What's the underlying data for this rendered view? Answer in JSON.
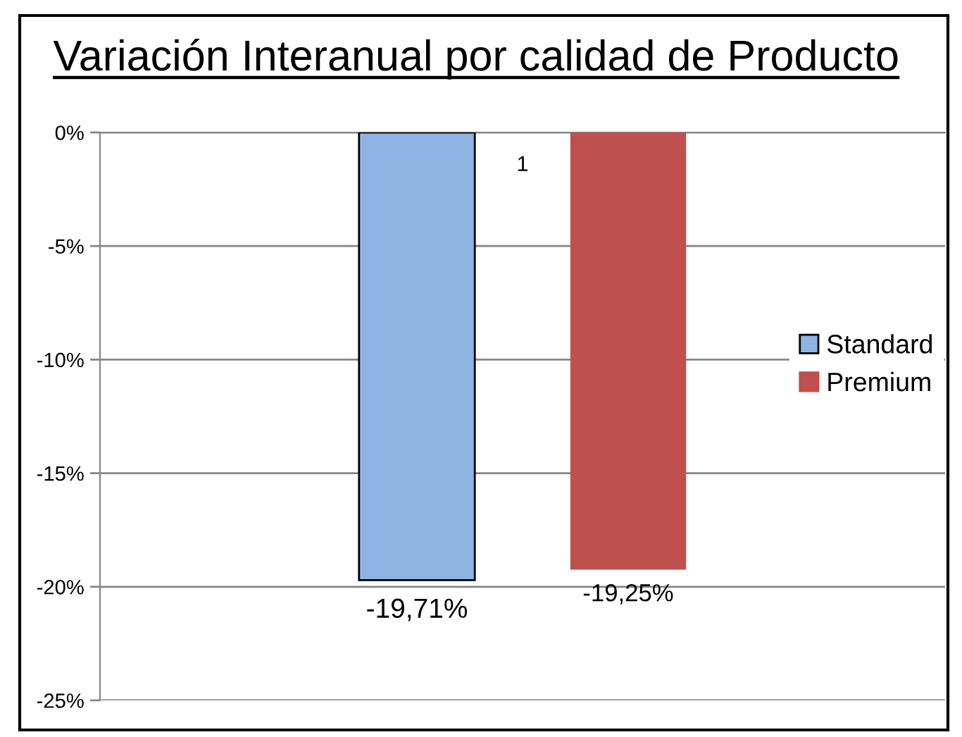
{
  "chart_data": {
    "type": "bar",
    "title": "Variación Interanual por calidad de Producto",
    "categories": [
      "1"
    ],
    "series": [
      {
        "name": "Standard",
        "color": "#8eb4e3",
        "values": [
          -19.71
        ],
        "value_labels": [
          "-19,71%"
        ]
      },
      {
        "name": "Premium",
        "color": "#c0504d",
        "values": [
          -19.25
        ],
        "value_labels": [
          "-19,25%"
        ]
      }
    ],
    "ylim": [
      -25,
      0
    ],
    "yticks": [
      {
        "value": -25,
        "label": "-25%"
      },
      {
        "value": -20,
        "label": "-20%"
      },
      {
        "value": -15,
        "label": "-15%"
      },
      {
        "value": -10,
        "label": "-10%"
      },
      {
        "value": -5,
        "label": "-5%"
      },
      {
        "value": 0,
        "label": "0%"
      }
    ],
    "grid": "y",
    "legend": "right"
  }
}
